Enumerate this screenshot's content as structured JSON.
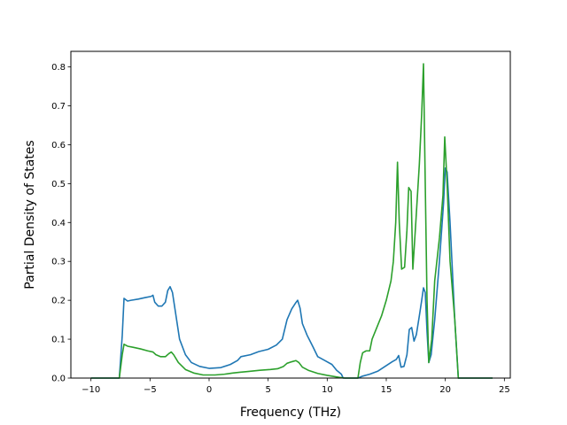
{
  "chart_data": {
    "type": "line",
    "title": "",
    "xlabel": "Frequency (THz)",
    "ylabel": "Partial Density of States",
    "xlim": [
      -11.7,
      25.5
    ],
    "ylim": [
      0.0,
      0.84
    ],
    "xticks": [
      -10,
      -5,
      0,
      5,
      10,
      15,
      20,
      25
    ],
    "yticks": [
      0.0,
      0.1,
      0.2,
      0.3,
      0.4,
      0.5,
      0.6,
      0.7,
      0.8
    ],
    "xtick_labels": [
      "−10",
      "−5",
      "0",
      "5",
      "10",
      "15",
      "20",
      "25"
    ],
    "ytick_labels": [
      "0.0",
      "0.1",
      "0.2",
      "0.3",
      "0.4",
      "0.5",
      "0.6",
      "0.7",
      "0.8"
    ],
    "grid": false,
    "legend": null,
    "series": [
      {
        "color": "#1f77b4",
        "points": [
          [
            -10.0,
            0.0
          ],
          [
            -7.6,
            0.0
          ],
          [
            -7.35,
            0.11
          ],
          [
            -7.2,
            0.205
          ],
          [
            -6.9,
            0.198
          ],
          [
            -6.6,
            0.2
          ],
          [
            -6.0,
            0.203
          ],
          [
            -5.4,
            0.207
          ],
          [
            -4.9,
            0.21
          ],
          [
            -4.75,
            0.213
          ],
          [
            -4.6,
            0.195
          ],
          [
            -4.3,
            0.185
          ],
          [
            -4.0,
            0.185
          ],
          [
            -3.7,
            0.195
          ],
          [
            -3.5,
            0.225
          ],
          [
            -3.3,
            0.235
          ],
          [
            -3.1,
            0.22
          ],
          [
            -2.9,
            0.18
          ],
          [
            -2.5,
            0.1
          ],
          [
            -2.0,
            0.06
          ],
          [
            -1.5,
            0.04
          ],
          [
            -0.8,
            0.03
          ],
          [
            0.0,
            0.025
          ],
          [
            1.0,
            0.027
          ],
          [
            1.8,
            0.035
          ],
          [
            2.4,
            0.045
          ],
          [
            2.7,
            0.055
          ],
          [
            3.5,
            0.06
          ],
          [
            4.2,
            0.068
          ],
          [
            5.0,
            0.074
          ],
          [
            5.7,
            0.085
          ],
          [
            6.2,
            0.1
          ],
          [
            6.6,
            0.15
          ],
          [
            7.0,
            0.178
          ],
          [
            7.3,
            0.192
          ],
          [
            7.5,
            0.2
          ],
          [
            7.7,
            0.18
          ],
          [
            7.9,
            0.14
          ],
          [
            8.3,
            0.11
          ],
          [
            8.8,
            0.08
          ],
          [
            9.2,
            0.055
          ],
          [
            9.8,
            0.045
          ],
          [
            10.4,
            0.035
          ],
          [
            10.8,
            0.02
          ],
          [
            11.2,
            0.01
          ],
          [
            11.35,
            0.0
          ],
          [
            12.6,
            0.0
          ],
          [
            13.0,
            0.005
          ],
          [
            13.6,
            0.01
          ],
          [
            14.3,
            0.018
          ],
          [
            14.9,
            0.03
          ],
          [
            15.5,
            0.042
          ],
          [
            15.85,
            0.048
          ],
          [
            16.05,
            0.058
          ],
          [
            16.25,
            0.028
          ],
          [
            16.5,
            0.03
          ],
          [
            16.75,
            0.06
          ],
          [
            16.95,
            0.125
          ],
          [
            17.15,
            0.13
          ],
          [
            17.35,
            0.095
          ],
          [
            17.55,
            0.112
          ],
          [
            17.8,
            0.16
          ],
          [
            18.0,
            0.2
          ],
          [
            18.15,
            0.232
          ],
          [
            18.3,
            0.22
          ],
          [
            18.45,
            0.12
          ],
          [
            18.6,
            0.04
          ],
          [
            18.8,
            0.06
          ],
          [
            19.1,
            0.15
          ],
          [
            19.5,
            0.3
          ],
          [
            19.85,
            0.45
          ],
          [
            20.0,
            0.54
          ],
          [
            20.15,
            0.53
          ],
          [
            20.4,
            0.4
          ],
          [
            20.8,
            0.15
          ],
          [
            21.1,
            0.0
          ],
          [
            24.0,
            0.0
          ]
        ]
      },
      {
        "color": "#2ca02c",
        "points": [
          [
            -10.0,
            0.0
          ],
          [
            -7.6,
            0.0
          ],
          [
            -7.35,
            0.06
          ],
          [
            -7.2,
            0.087
          ],
          [
            -6.9,
            0.082
          ],
          [
            -6.4,
            0.079
          ],
          [
            -5.8,
            0.075
          ],
          [
            -5.2,
            0.07
          ],
          [
            -4.75,
            0.067
          ],
          [
            -4.5,
            0.06
          ],
          [
            -4.1,
            0.055
          ],
          [
            -3.7,
            0.055
          ],
          [
            -3.4,
            0.063
          ],
          [
            -3.2,
            0.067
          ],
          [
            -3.0,
            0.06
          ],
          [
            -2.6,
            0.04
          ],
          [
            -2.0,
            0.022
          ],
          [
            -1.3,
            0.013
          ],
          [
            -0.5,
            0.008
          ],
          [
            0.5,
            0.008
          ],
          [
            1.3,
            0.01
          ],
          [
            2.0,
            0.013
          ],
          [
            2.6,
            0.015
          ],
          [
            3.3,
            0.017
          ],
          [
            4.3,
            0.02
          ],
          [
            5.2,
            0.022
          ],
          [
            5.8,
            0.024
          ],
          [
            6.3,
            0.03
          ],
          [
            6.6,
            0.038
          ],
          [
            7.0,
            0.042
          ],
          [
            7.35,
            0.045
          ],
          [
            7.6,
            0.04
          ],
          [
            7.9,
            0.028
          ],
          [
            8.4,
            0.02
          ],
          [
            9.2,
            0.012
          ],
          [
            10.0,
            0.007
          ],
          [
            11.0,
            0.002
          ],
          [
            11.5,
            0.0
          ],
          [
            12.6,
            0.0
          ],
          [
            12.8,
            0.04
          ],
          [
            13.0,
            0.065
          ],
          [
            13.3,
            0.07
          ],
          [
            13.6,
            0.07
          ],
          [
            13.8,
            0.1
          ],
          [
            14.2,
            0.13
          ],
          [
            14.6,
            0.16
          ],
          [
            15.0,
            0.2
          ],
          [
            15.4,
            0.25
          ],
          [
            15.6,
            0.3
          ],
          [
            15.8,
            0.4
          ],
          [
            15.95,
            0.555
          ],
          [
            16.1,
            0.4
          ],
          [
            16.3,
            0.28
          ],
          [
            16.55,
            0.285
          ],
          [
            16.75,
            0.38
          ],
          [
            16.9,
            0.49
          ],
          [
            17.1,
            0.48
          ],
          [
            17.25,
            0.28
          ],
          [
            17.5,
            0.4
          ],
          [
            17.8,
            0.55
          ],
          [
            18.0,
            0.68
          ],
          [
            18.15,
            0.808
          ],
          [
            18.3,
            0.5
          ],
          [
            18.45,
            0.2
          ],
          [
            18.6,
            0.04
          ],
          [
            18.85,
            0.1
          ],
          [
            19.1,
            0.25
          ],
          [
            19.5,
            0.36
          ],
          [
            19.8,
            0.47
          ],
          [
            19.95,
            0.62
          ],
          [
            20.15,
            0.5
          ],
          [
            20.4,
            0.3
          ],
          [
            20.8,
            0.15
          ],
          [
            21.1,
            0.0
          ],
          [
            24.0,
            0.0
          ]
        ]
      }
    ]
  }
}
